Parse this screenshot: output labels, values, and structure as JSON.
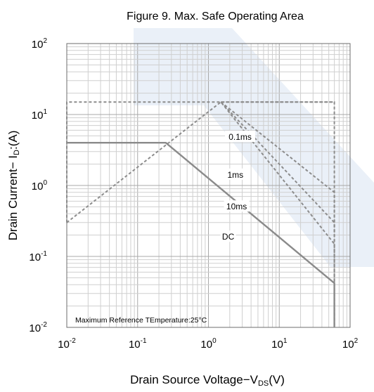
{
  "chart_data": {
    "type": "line",
    "title": "Figure 9. Max. Safe Operating Area",
    "xlabel": {
      "main": "Drain Source Voltage−V",
      "sub": "DS",
      "tail": "(V)"
    },
    "ylabel": {
      "main": "Drain Current− I",
      "sub": "D",
      "tail": ":(A)"
    },
    "x_scale": "log",
    "y_scale": "log",
    "xlim": [
      0.01,
      100
    ],
    "ylim": [
      0.01,
      100
    ],
    "grid": true,
    "x_ticks": [
      {
        "base": "10",
        "exp": "-2",
        "value": 0.01
      },
      {
        "base": "10",
        "exp": "-1",
        "value": 0.1
      },
      {
        "base": "10",
        "exp": "0",
        "value": 1
      },
      {
        "base": "10",
        "exp": "1",
        "value": 10
      },
      {
        "base": "10",
        "exp": "2",
        "value": 100
      }
    ],
    "y_ticks": [
      {
        "base": "10",
        "exp": "-2",
        "value": 0.01
      },
      {
        "base": "10",
        "exp": "-1",
        "value": 0.1
      },
      {
        "base": "10",
        "exp": "0",
        "value": 1
      },
      {
        "base": "10",
        "exp": "1",
        "value": 10
      },
      {
        "base": "10",
        "exp": "2",
        "value": 100
      }
    ],
    "series": [
      {
        "name": "0.1ms",
        "style": "dashed",
        "color": "#8c8c8c",
        "points": [
          [
            1.5,
            15
          ],
          [
            60,
            15
          ],
          [
            60,
            0.2
          ]
        ]
      },
      {
        "name": "1ms",
        "style": "dashed",
        "color": "#8c8c8c",
        "points": [
          [
            1.5,
            15
          ],
          [
            60,
            0.8
          ],
          [
            60,
            0.01
          ]
        ]
      },
      {
        "name": "10ms",
        "style": "dashed",
        "color": "#8c8c8c",
        "points": [
          [
            1.5,
            15
          ],
          [
            60,
            0.3
          ],
          [
            60,
            0.01
          ]
        ]
      },
      {
        "name": "DC",
        "style": "solid",
        "color": "#8a8a8a",
        "points": [
          [
            0.01,
            4
          ],
          [
            0.25,
            4
          ],
          [
            60,
            0.042
          ],
          [
            60,
            0.01
          ]
        ]
      },
      {
        "name": "",
        "style": "dashed",
        "color": "#8c8c8c",
        "points": [
          [
            0.01,
            0.3
          ],
          [
            0.01,
            15
          ],
          [
            60,
            15
          ]
        ]
      },
      {
        "name": "",
        "style": "dashed",
        "color": "#8c8c8c",
        "points": [
          [
            0.01,
            0.3
          ],
          [
            1.5,
            15
          ],
          [
            60,
            0.15
          ],
          [
            60,
            0.01
          ]
        ]
      }
    ],
    "annotations": [
      {
        "text": "Maximum Reference TEmperature:25°C"
      }
    ]
  }
}
